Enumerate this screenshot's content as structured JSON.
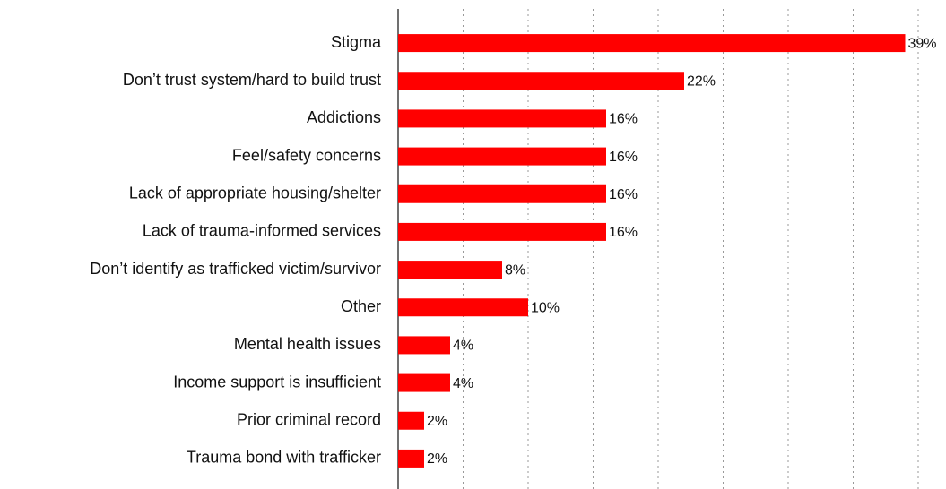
{
  "chart_data": {
    "type": "bar",
    "orientation": "horizontal",
    "categories": [
      "Stigma",
      "Don’t trust system/hard to build trust",
      "Addictions",
      "Feel/safety concerns",
      "Lack of appropriate housing/shelter",
      "Lack of trauma-informed services",
      "Don’t identify as trafficked victim/survivor",
      "Other",
      "Mental health issues",
      "Income support is insufficient",
      "Prior criminal record",
      "Trauma bond with trafficker"
    ],
    "values": [
      39,
      22,
      16,
      16,
      16,
      16,
      8,
      10,
      4,
      4,
      2,
      2
    ],
    "value_labels": [
      "39%",
      "22%",
      "16%",
      "16%",
      "16%",
      "16%",
      "8%",
      "10%",
      "4%",
      "4%",
      "2%",
      "2%"
    ],
    "color": "#ff0000",
    "xlim": [
      0,
      40
    ],
    "xticks": [
      0,
      5,
      10,
      15,
      20,
      25,
      30,
      35,
      40
    ],
    "grid": true
  }
}
